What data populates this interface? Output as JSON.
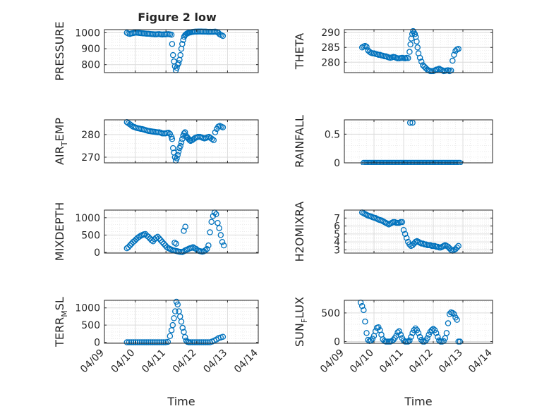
{
  "figure": {
    "title": "Figure 2 low"
  },
  "chart_data": [
    {
      "type": "scatter",
      "id": "pressure",
      "ylabel": "PRESSURE",
      "xlabel": "",
      "xlim": [
        0,
        5
      ],
      "ylim": [
        750,
        1020
      ],
      "yticks": [
        800,
        900,
        1000
      ],
      "xticks": [
        0,
        1,
        2,
        3,
        4
      ],
      "xticklabels": [],
      "grid": true,
      "color": "#0072BD",
      "x": [
        0.73,
        0.78,
        0.83,
        0.88,
        0.93,
        0.98,
        1.03,
        1.08,
        1.13,
        1.18,
        1.23,
        1.28,
        1.33,
        1.38,
        1.43,
        1.48,
        1.53,
        1.58,
        1.63,
        1.68,
        1.73,
        1.78,
        1.83,
        1.88,
        1.93,
        1.98,
        2.03,
        2.08,
        2.13,
        2.18,
        2.2,
        2.23,
        2.26,
        2.29,
        2.32,
        2.35,
        2.38,
        2.41,
        2.44,
        2.47,
        2.5,
        2.53,
        2.56,
        2.59,
        2.62,
        2.65,
        2.68,
        2.71,
        2.74,
        2.77,
        2.8,
        2.85,
        2.9,
        2.95,
        3.0,
        3.05,
        3.1,
        3.15,
        3.2,
        3.25,
        3.3,
        3.35,
        3.4,
        3.45,
        3.5,
        3.55,
        3.6,
        3.65,
        3.7,
        3.75,
        3.8,
        3.85
      ],
      "y": [
        1000,
        995,
        993,
        996,
        998,
        1000,
        1001,
        1000,
        999,
        998,
        997,
        996,
        995,
        994,
        994,
        993,
        992,
        991,
        990,
        990,
        991,
        992,
        990,
        989,
        990,
        990,
        991,
        992,
        990,
        988,
        930,
        860,
        820,
        790,
        765,
        780,
        800,
        810,
        830,
        860,
        900,
        930,
        955,
        975,
        985,
        990,
        995,
        998,
        1000,
        1002,
        1003,
        1005,
        1006,
        1007,
        1007,
        1008,
        1008,
        1008,
        1007,
        1007,
        1007,
        1006,
        1006,
        1006,
        1006,
        1006,
        1007,
        1005,
        1000,
        990,
        985,
        980
      ]
    },
    {
      "type": "scatter",
      "id": "theta",
      "ylabel": "THETA",
      "xlabel": "",
      "xlim": [
        0,
        5
      ],
      "ylim": [
        276.5,
        291
      ],
      "yticks": [
        280,
        285,
        290
      ],
      "xticks": [
        0,
        1,
        2,
        3,
        4
      ],
      "xticklabels": [],
      "grid": true,
      "color": "#0072BD",
      "x": [
        0.6,
        0.65,
        0.7,
        0.75,
        0.8,
        0.85,
        0.9,
        0.95,
        1.0,
        1.05,
        1.1,
        1.15,
        1.2,
        1.25,
        1.3,
        1.35,
        1.4,
        1.45,
        1.5,
        1.55,
        1.6,
        1.65,
        1.7,
        1.75,
        1.8,
        1.85,
        1.9,
        1.95,
        2.0,
        2.05,
        2.1,
        2.15,
        2.2,
        2.23,
        2.26,
        2.29,
        2.32,
        2.35,
        2.38,
        2.41,
        2.44,
        2.47,
        2.5,
        2.55,
        2.6,
        2.65,
        2.7,
        2.75,
        2.8,
        2.85,
        2.9,
        2.95,
        3.0,
        3.05,
        3.1,
        3.15,
        3.2,
        3.25,
        3.3,
        3.35,
        3.4,
        3.45,
        3.5,
        3.55,
        3.6,
        3.65,
        3.7,
        3.75,
        3.8,
        3.85
      ],
      "y": [
        285,
        285.3,
        285.5,
        285.2,
        284,
        283.5,
        283.2,
        283,
        283,
        282.8,
        282.7,
        282.5,
        282.5,
        282.3,
        282.2,
        282,
        282,
        281.8,
        281.6,
        281.5,
        281.6,
        281.8,
        281.7,
        281.5,
        281.3,
        281.3,
        281.4,
        281.5,
        281.4,
        281.3,
        281.5,
        281.4,
        283.5,
        286,
        288,
        289.5,
        290.5,
        290,
        289.5,
        288.5,
        287,
        285,
        283,
        281.5,
        280.2,
        279,
        278.5,
        278,
        277.5,
        277.2,
        277,
        277,
        277,
        277.2,
        277.5,
        277.6,
        277.8,
        277.5,
        277.3,
        277,
        277.1,
        277.2,
        277.3,
        277,
        277.2,
        280.5,
        282.5,
        283.8,
        284.3,
        284.5
      ]
    },
    {
      "type": "scatter",
      "id": "air_temp",
      "ylabel": "AIR_TEMP",
      "xlabel": "",
      "xlim": [
        0,
        5
      ],
      "ylim": [
        267.5,
        286.5
      ],
      "yticks": [
        270,
        280
      ],
      "xticks": [
        0,
        1,
        2,
        3,
        4
      ],
      "xticklabels": [],
      "grid": true,
      "color": "#0072BD",
      "x": [
        0.73,
        0.78,
        0.83,
        0.88,
        0.93,
        0.98,
        1.03,
        1.08,
        1.13,
        1.18,
        1.23,
        1.28,
        1.33,
        1.38,
        1.43,
        1.48,
        1.53,
        1.58,
        1.63,
        1.68,
        1.73,
        1.78,
        1.83,
        1.88,
        1.93,
        1.98,
        2.03,
        2.08,
        2.13,
        2.18,
        2.2,
        2.23,
        2.26,
        2.29,
        2.32,
        2.35,
        2.38,
        2.41,
        2.44,
        2.47,
        2.5,
        2.53,
        2.56,
        2.59,
        2.62,
        2.65,
        2.68,
        2.71,
        2.74,
        2.77,
        2.8,
        2.85,
        2.9,
        2.95,
        3.0,
        3.05,
        3.1,
        3.15,
        3.2,
        3.25,
        3.3,
        3.35,
        3.4,
        3.45,
        3.5,
        3.55,
        3.6,
        3.65,
        3.7,
        3.75,
        3.8,
        3.85
      ],
      "y": [
        285.5,
        285,
        284.5,
        284,
        283.5,
        283.3,
        283,
        282.8,
        282.7,
        282.5,
        282.4,
        282.2,
        282,
        281.8,
        281.6,
        281.5,
        281.4,
        281.3,
        281.2,
        281.1,
        281,
        281,
        280.8,
        280.5,
        280.5,
        280.5,
        280.7,
        280.8,
        280.3,
        279,
        278,
        274,
        272,
        270,
        268.5,
        269.5,
        271,
        272.5,
        274,
        275,
        276.5,
        278,
        279.5,
        280.5,
        281,
        279.5,
        279,
        278.5,
        278,
        277.5,
        277.2,
        277.5,
        278,
        278.5,
        278.8,
        279,
        279,
        278.8,
        278.5,
        278.3,
        278.5,
        278.8,
        279,
        278.5,
        278,
        277.5,
        281,
        282.5,
        283.5,
        283.8,
        283.5,
        283.2
      ]
    },
    {
      "type": "scatter",
      "id": "rainfall",
      "ylabel": "RAINFALL",
      "xlabel": "",
      "xlim": [
        0,
        5
      ],
      "ylim": [
        0,
        0.75
      ],
      "yticks": [
        0,
        0.5
      ],
      "xticks": [
        0,
        1,
        2,
        3,
        4
      ],
      "xticklabels": [],
      "grid": true,
      "color": "#0072BD",
      "x": [
        0.65,
        0.7,
        0.75,
        0.8,
        0.85,
        0.9,
        0.95,
        1.0,
        1.05,
        1.1,
        1.15,
        1.2,
        1.25,
        1.3,
        1.35,
        1.4,
        1.45,
        1.5,
        1.55,
        1.6,
        1.65,
        1.7,
        1.75,
        1.8,
        1.85,
        1.9,
        1.95,
        2.0,
        2.05,
        2.1,
        2.15,
        2.2,
        2.25,
        2.3,
        2.35,
        2.4,
        2.45,
        2.5,
        2.55,
        2.6,
        2.65,
        2.7,
        2.75,
        2.8,
        2.85,
        2.9,
        2.95,
        3.0,
        3.05,
        3.1,
        3.15,
        3.2,
        3.25,
        3.3,
        3.35,
        3.4,
        3.45,
        3.5,
        3.55,
        3.6,
        3.65,
        3.7,
        3.75,
        3.8,
        3.85,
        3.9,
        2.22,
        2.3
      ],
      "y": [
        0,
        0,
        0,
        0,
        0,
        0,
        0,
        0,
        0,
        0,
        0,
        0,
        0,
        0,
        0,
        0,
        0,
        0,
        0,
        0,
        0,
        0,
        0,
        0,
        0,
        0,
        0,
        0,
        0,
        0,
        0,
        0,
        0,
        0,
        0,
        0,
        0,
        0,
        0,
        0,
        0,
        0,
        0,
        0,
        0,
        0,
        0,
        0,
        0,
        0,
        0,
        0,
        0,
        0,
        0,
        0,
        0,
        0,
        0,
        0,
        0,
        0,
        0,
        0,
        0,
        0,
        0.7,
        0.7
      ]
    },
    {
      "type": "scatter",
      "id": "mixdepth",
      "ylabel": "MIXDEPTH",
      "xlabel": "",
      "xlim": [
        0,
        5
      ],
      "ylim": [
        -20,
        1220
      ],
      "yticks": [
        0,
        500,
        1000
      ],
      "xticks": [
        0,
        1,
        2,
        3,
        4
      ],
      "xticklabels": [],
      "grid": true,
      "color": "#0072BD",
      "x": [
        0.73,
        0.78,
        0.83,
        0.88,
        0.93,
        0.98,
        1.03,
        1.08,
        1.13,
        1.18,
        1.23,
        1.28,
        1.33,
        1.38,
        1.43,
        1.48,
        1.53,
        1.58,
        1.63,
        1.68,
        1.73,
        1.78,
        1.83,
        1.88,
        1.93,
        1.98,
        2.03,
        2.08,
        2.13,
        2.18,
        2.23,
        2.28,
        2.33,
        2.38,
        2.43,
        2.48,
        2.53,
        2.58,
        2.63,
        2.68,
        2.73,
        2.78,
        2.83,
        2.88,
        2.93,
        2.98,
        3.03,
        3.08,
        3.13,
        3.18,
        3.23,
        3.28,
        3.33,
        3.38,
        3.43,
        3.48,
        3.53,
        3.58,
        3.63,
        3.68,
        3.73,
        3.78,
        3.83,
        3.88,
        2.58,
        2.63,
        2.28,
        2.33
      ],
      "y": [
        120,
        150,
        200,
        250,
        300,
        330,
        380,
        420,
        450,
        480,
        500,
        520,
        530,
        480,
        450,
        400,
        350,
        320,
        380,
        420,
        450,
        400,
        350,
        300,
        250,
        200,
        150,
        120,
        100,
        80,
        60,
        50,
        40,
        30,
        20,
        15,
        10,
        30,
        60,
        80,
        100,
        120,
        130,
        150,
        120,
        100,
        60,
        40,
        30,
        20,
        30,
        60,
        100,
        200,
        580,
        880,
        1050,
        1150,
        1100,
        850,
        700,
        500,
        300,
        200,
        620,
        740,
        280,
        250
      ]
    },
    {
      "type": "scatter",
      "id": "h2omixra",
      "ylabel": "H2OMIXRA",
      "xlabel": "",
      "xlim": [
        0,
        5
      ],
      "ylim": [
        2.6,
        8.0
      ],
      "yticks": [
        3,
        4,
        5,
        6,
        7
      ],
      "xticks": [
        0,
        1,
        2,
        3,
        4
      ],
      "xticklabels": [],
      "grid": true,
      "color": "#0072BD",
      "x": [
        0.6,
        0.65,
        0.7,
        0.75,
        0.8,
        0.85,
        0.9,
        0.95,
        1.0,
        1.05,
        1.1,
        1.15,
        1.2,
        1.25,
        1.3,
        1.35,
        1.4,
        1.45,
        1.5,
        1.55,
        1.6,
        1.65,
        1.7,
        1.75,
        1.8,
        1.85,
        1.9,
        1.95,
        2.0,
        2.05,
        2.1,
        2.15,
        2.2,
        2.25,
        2.3,
        2.35,
        2.4,
        2.45,
        2.5,
        2.55,
        2.6,
        2.65,
        2.7,
        2.75,
        2.8,
        2.85,
        2.9,
        2.95,
        3.0,
        3.05,
        3.1,
        3.15,
        3.2,
        3.25,
        3.3,
        3.35,
        3.4,
        3.45,
        3.5,
        3.55,
        3.6,
        3.65,
        3.7,
        3.75,
        3.8,
        3.85
      ],
      "y": [
        7.7,
        7.6,
        7.5,
        7.4,
        7.3,
        7.25,
        7.2,
        7.1,
        7.05,
        7.0,
        6.9,
        6.8,
        6.75,
        6.7,
        6.6,
        6.5,
        6.4,
        6.3,
        6.2,
        6.3,
        6.4,
        6.5,
        6.5,
        6.4,
        6.4,
        6.4,
        6.5,
        6.5,
        5.5,
        5.0,
        4.5,
        4.0,
        3.7,
        3.5,
        3.6,
        3.8,
        4.0,
        4.1,
        4.0,
        3.9,
        3.8,
        3.8,
        3.7,
        3.7,
        3.6,
        3.6,
        3.6,
        3.5,
        3.5,
        3.5,
        3.4,
        3.4,
        3.3,
        3.3,
        3.4,
        3.5,
        3.6,
        3.5,
        3.4,
        3.2,
        3.0,
        2.9,
        3.0,
        3.1,
        3.3,
        3.5
      ]
    },
    {
      "type": "scatter",
      "id": "terr_msl",
      "ylabel": "TERR_MSL",
      "xlabel": "",
      "xlim": [
        0,
        5
      ],
      "ylim": [
        -30,
        1220
      ],
      "yticks": [
        0,
        500,
        1000
      ],
      "xticks": [
        0,
        1,
        2,
        3,
        4
      ],
      "xticklabels": [],
      "grid": true,
      "color": "#0072BD",
      "x": [
        0.73,
        0.8,
        0.87,
        0.94,
        1.01,
        1.08,
        1.15,
        1.22,
        1.29,
        1.36,
        1.43,
        1.5,
        1.57,
        1.64,
        1.71,
        1.78,
        1.85,
        1.92,
        1.99,
        2.06,
        2.13,
        2.18,
        2.22,
        2.26,
        2.3,
        2.34,
        2.38,
        2.42,
        2.46,
        2.5,
        2.54,
        2.58,
        2.62,
        2.66,
        2.7,
        2.75,
        2.8,
        2.87,
        2.94,
        3.01,
        3.08,
        3.15,
        3.22,
        3.29,
        3.36,
        3.43,
        3.5,
        3.57,
        3.64,
        3.71,
        3.78,
        3.85
      ],
      "y": [
        0,
        0,
        0,
        0,
        0,
        0,
        0,
        0,
        0,
        0,
        0,
        0,
        0,
        0,
        0,
        0,
        0,
        0,
        0,
        10,
        180,
        350,
        500,
        700,
        900,
        1180,
        1100,
        900,
        750,
        600,
        420,
        300,
        150,
        50,
        10,
        0,
        0,
        0,
        0,
        0,
        0,
        0,
        0,
        0,
        0,
        0,
        20,
        50,
        80,
        120,
        140,
        160
      ]
    },
    {
      "type": "scatter",
      "id": "sun_flux",
      "ylabel": "SUN_FLUX",
      "xlabel": "",
      "xlim": [
        0,
        5
      ],
      "ylim": [
        -30,
        720
      ],
      "yticks": [
        0,
        500
      ],
      "xticks": [
        0,
        1,
        2,
        3,
        4
      ],
      "xticklabels": [],
      "grid": true,
      "color": "#0072BD",
      "x": [
        0.55,
        0.6,
        0.65,
        0.7,
        0.75,
        0.8,
        0.85,
        0.9,
        0.95,
        1.0,
        1.05,
        1.1,
        1.15,
        1.2,
        1.25,
        1.3,
        1.35,
        1.4,
        1.45,
        1.5,
        1.55,
        1.6,
        1.65,
        1.7,
        1.75,
        1.8,
        1.85,
        1.9,
        1.95,
        2.0,
        2.05,
        2.1,
        2.15,
        2.2,
        2.25,
        2.3,
        2.35,
        2.4,
        2.45,
        2.5,
        2.55,
        2.6,
        2.65,
        2.7,
        2.75,
        2.8,
        2.85,
        2.9,
        2.95,
        3.0,
        3.05,
        3.1,
        3.15,
        3.2,
        3.25,
        3.3,
        3.35,
        3.4,
        3.45,
        3.5,
        3.55,
        3.6,
        3.65,
        3.7,
        3.75,
        3.8,
        3.85,
        3.9
      ],
      "y": [
        680,
        620,
        550,
        350,
        150,
        30,
        10,
        20,
        50,
        100,
        180,
        240,
        250,
        200,
        120,
        40,
        10,
        0,
        0,
        0,
        0,
        10,
        30,
        60,
        100,
        160,
        180,
        120,
        60,
        20,
        0,
        0,
        0,
        20,
        80,
        150,
        200,
        230,
        200,
        150,
        80,
        30,
        0,
        0,
        20,
        60,
        120,
        170,
        200,
        220,
        200,
        150,
        80,
        20,
        0,
        0,
        10,
        60,
        150,
        320,
        480,
        510,
        500,
        480,
        420,
        380,
        0,
        0
      ]
    }
  ],
  "axes": {
    "bottom_xticklabels": [
      "04/09",
      "04/10",
      "04/11",
      "04/12",
      "04/13",
      "04/14"
    ],
    "xlabel": "Time"
  }
}
